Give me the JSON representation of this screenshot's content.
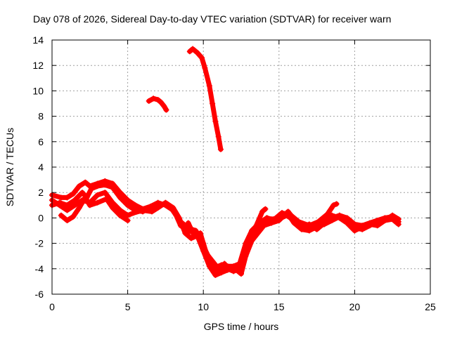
{
  "chart_data": {
    "type": "scatter",
    "title": "Day 078 of 2026, Sidereal Day-to-day VTEC variation (SDTVAR) for receiver warn",
    "xlabel": "GPS time / hours",
    "ylabel": "SDTVAR / TECUs",
    "xlim": [
      0,
      25
    ],
    "ylim": [
      -6,
      14
    ],
    "xticks": [
      0,
      5,
      10,
      15,
      20,
      25
    ],
    "yticks": [
      -6,
      -4,
      -2,
      0,
      2,
      4,
      6,
      8,
      10,
      12,
      14
    ],
    "grid": true,
    "marker": "+",
    "color": "#ff0000",
    "series": [
      {
        "name": "track-a",
        "points": [
          [
            0.0,
            1.0
          ],
          [
            0.5,
            1.2
          ],
          [
            1.0,
            1.0
          ],
          [
            1.5,
            1.4
          ],
          [
            2.0,
            2.0
          ],
          [
            2.3,
            1.6
          ],
          [
            2.6,
            2.3
          ],
          [
            3.0,
            2.5
          ],
          [
            3.5,
            2.6
          ],
          [
            4.0,
            2.4
          ],
          [
            4.5,
            1.6
          ],
          [
            5.0,
            1.0
          ],
          [
            5.5,
            0.6
          ],
          [
            6.0,
            0.5
          ],
          [
            6.5,
            0.8
          ],
          [
            7.0,
            1.0
          ],
          [
            7.5,
            1.1
          ],
          [
            7.8,
            0.9
          ],
          [
            8.2,
            0.2
          ],
          [
            8.5,
            -0.6
          ],
          [
            9.0,
            -1.0
          ],
          [
            9.5,
            -1.2
          ],
          [
            10.0,
            -2.2
          ],
          [
            10.4,
            -3.2
          ],
          [
            10.8,
            -3.9
          ],
          [
            11.2,
            -3.7
          ],
          [
            11.6,
            -3.8
          ],
          [
            12.0,
            -3.8
          ],
          [
            12.4,
            -3.6
          ],
          [
            12.8,
            -2.0
          ],
          [
            13.2,
            -1.0
          ],
          [
            13.7,
            -0.4
          ],
          [
            14.2,
            0.0
          ],
          [
            14.8,
            -0.2
          ],
          [
            15.5,
            0.2
          ],
          [
            16.0,
            -0.2
          ],
          [
            16.5,
            -0.6
          ],
          [
            17.0,
            -0.8
          ],
          [
            17.5,
            -0.6
          ],
          [
            18.0,
            -0.4
          ],
          [
            18.5,
            0.0
          ],
          [
            19.0,
            0.2
          ],
          [
            19.5,
            0.0
          ],
          [
            20.0,
            -0.5
          ],
          [
            20.5,
            -0.6
          ],
          [
            21.0,
            -0.4
          ],
          [
            21.5,
            -0.2
          ],
          [
            22.0,
            0.0
          ],
          [
            22.5,
            0.1
          ],
          [
            22.9,
            -0.3
          ]
        ]
      },
      {
        "name": "track-b",
        "points": [
          [
            0.0,
            1.8
          ],
          [
            0.6,
            1.6
          ],
          [
            1.0,
            1.6
          ],
          [
            1.4,
            1.9
          ],
          [
            1.8,
            2.5
          ],
          [
            2.2,
            2.8
          ],
          [
            2.5,
            2.5
          ],
          [
            3.0,
            2.7
          ],
          [
            3.5,
            2.9
          ],
          [
            4.0,
            2.7
          ],
          [
            4.5,
            2.0
          ],
          [
            5.0,
            1.4
          ],
          [
            5.5,
            1.0
          ],
          [
            6.0,
            0.7
          ],
          [
            6.5,
            0.9
          ],
          [
            7.0,
            1.2
          ],
          [
            7.5,
            1.0
          ],
          [
            8.0,
            0.6
          ],
          [
            8.5,
            -0.3
          ],
          [
            9.0,
            -0.8
          ],
          [
            9.5,
            -1.0
          ],
          [
            10.0,
            -2.0
          ],
          [
            10.4,
            -3.6
          ],
          [
            10.8,
            -4.3
          ],
          [
            11.2,
            -4.1
          ],
          [
            11.6,
            -4.0
          ],
          [
            12.0,
            -4.2
          ],
          [
            12.4,
            -4.0
          ],
          [
            12.8,
            -2.8
          ],
          [
            13.2,
            -1.5
          ],
          [
            13.6,
            -0.8
          ],
          [
            14.0,
            -0.3
          ],
          [
            14.5,
            -0.1
          ],
          [
            15.0,
            0.0
          ],
          [
            15.6,
            0.3
          ],
          [
            16.0,
            -0.4
          ],
          [
            16.5,
            -0.9
          ],
          [
            17.0,
            -1.0
          ],
          [
            17.5,
            -0.7
          ],
          [
            18.0,
            -0.5
          ],
          [
            18.5,
            -0.2
          ],
          [
            19.0,
            0.1
          ],
          [
            19.5,
            -0.3
          ],
          [
            20.0,
            -0.8
          ],
          [
            20.5,
            -0.9
          ],
          [
            21.0,
            -0.6
          ],
          [
            21.5,
            -0.3
          ],
          [
            22.0,
            -0.2
          ],
          [
            22.5,
            -0.1
          ],
          [
            22.9,
            -0.5
          ]
        ]
      },
      {
        "name": "track-c",
        "points": [
          [
            0.0,
            1.4
          ],
          [
            0.5,
            1.0
          ],
          [
            1.0,
            0.6
          ],
          [
            1.5,
            1.0
          ],
          [
            2.0,
            1.4
          ],
          [
            2.5,
            1.2
          ],
          [
            3.0,
            1.8
          ],
          [
            3.5,
            2.0
          ],
          [
            4.0,
            1.2
          ],
          [
            4.5,
            0.6
          ],
          [
            5.0,
            0.2
          ],
          [
            5.4,
            0.4
          ],
          [
            6.0,
            0.6
          ],
          [
            6.6,
            0.5
          ],
          [
            7.0,
            0.8
          ],
          [
            7.5,
            1.2
          ],
          [
            8.0,
            0.8
          ],
          [
            8.4,
            0.0
          ],
          [
            8.8,
            -1.2
          ],
          [
            9.2,
            -1.6
          ],
          [
            9.6,
            -1.4
          ],
          [
            10.0,
            -2.6
          ],
          [
            10.4,
            -3.8
          ],
          [
            10.8,
            -4.5
          ],
          [
            11.2,
            -4.3
          ],
          [
            11.6,
            -4.1
          ],
          [
            12.0,
            -3.9
          ],
          [
            12.5,
            -4.4
          ],
          [
            12.8,
            -3.0
          ],
          [
            13.2,
            -1.8
          ],
          [
            13.6,
            -1.2
          ],
          [
            14.0,
            -0.6
          ],
          [
            14.5,
            -0.4
          ],
          [
            15.0,
            -0.2
          ],
          [
            15.6,
            0.5
          ],
          [
            16.0,
            -0.1
          ],
          [
            16.5,
            -0.7
          ],
          [
            17.0,
            -0.5
          ],
          [
            17.5,
            -0.9
          ],
          [
            18.0,
            -0.4
          ],
          [
            18.5,
            0.2
          ],
          [
            19.0,
            0.0
          ],
          [
            19.5,
            -0.4
          ],
          [
            20.0,
            -1.0
          ],
          [
            20.5,
            -0.7
          ],
          [
            21.0,
            -0.5
          ],
          [
            21.5,
            -0.6
          ],
          [
            22.0,
            -0.2
          ],
          [
            22.5,
            0.2
          ],
          [
            22.9,
            -0.1
          ]
        ]
      },
      {
        "name": "track-d",
        "points": [
          [
            0.6,
            0.2
          ],
          [
            1.0,
            -0.2
          ],
          [
            1.4,
            0.1
          ],
          [
            1.8,
            0.8
          ],
          [
            2.2,
            1.6
          ],
          [
            2.5,
            1.0
          ],
          [
            3.0,
            1.2
          ],
          [
            3.6,
            1.5
          ],
          [
            4.0,
            0.8
          ],
          [
            4.5,
            0.2
          ],
          [
            5.0,
            -0.2
          ]
        ]
      },
      {
        "name": "track-e",
        "points": [
          [
            9.0,
            -0.4
          ],
          [
            9.4,
            -1.4
          ],
          [
            9.8,
            -1.2
          ],
          [
            10.2,
            -2.8
          ],
          [
            10.6,
            -3.4
          ],
          [
            11.0,
            -4.0
          ],
          [
            11.4,
            -3.6
          ]
        ]
      },
      {
        "name": "track-f",
        "points": [
          [
            14.2,
            0.0
          ],
          [
            14.6,
            -0.2
          ],
          [
            15.2,
            0.4
          ],
          [
            15.8,
            0.2
          ],
          [
            16.3,
            -0.3
          ],
          [
            17.0,
            -0.6
          ],
          [
            17.6,
            -0.3
          ],
          [
            18.2,
            0.3
          ],
          [
            18.6,
            1.0
          ],
          [
            18.8,
            1.1
          ]
        ]
      },
      {
        "name": "track-g",
        "points": [
          [
            12.8,
            -2.3
          ],
          [
            13.1,
            -1.6
          ],
          [
            13.5,
            -0.6
          ],
          [
            13.9,
            0.5
          ],
          [
            14.1,
            0.7
          ]
        ]
      },
      {
        "name": "arc-1",
        "points": [
          [
            6.4,
            9.2
          ],
          [
            6.7,
            9.4
          ],
          [
            7.0,
            9.3
          ],
          [
            7.2,
            9.1
          ],
          [
            7.4,
            8.8
          ],
          [
            7.55,
            8.5
          ]
        ]
      },
      {
        "name": "arc-2",
        "points": [
          [
            9.1,
            13.1
          ],
          [
            9.3,
            13.3
          ],
          [
            9.6,
            13.0
          ],
          [
            9.9,
            12.6
          ],
          [
            10.1,
            11.8
          ],
          [
            10.4,
            10.4
          ],
          [
            10.6,
            9.0
          ],
          [
            10.8,
            7.6
          ],
          [
            11.0,
            6.4
          ],
          [
            11.15,
            5.4
          ]
        ]
      }
    ]
  }
}
